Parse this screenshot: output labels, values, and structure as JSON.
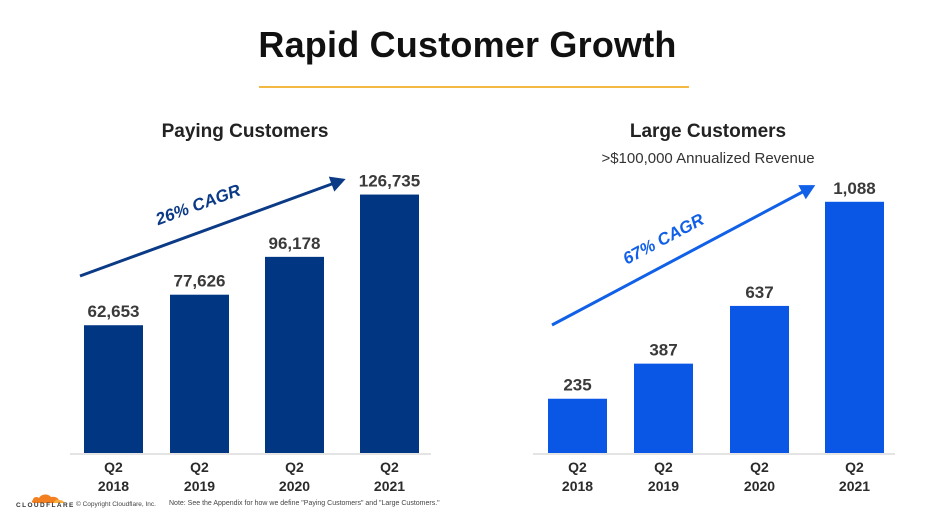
{
  "title": "Rapid Customer Growth",
  "colors": {
    "accent_rule": "#f4b942",
    "paying_bar": "#003682",
    "large_bar": "#0a57e6",
    "paying_arrow": "#0b3a86",
    "large_arrow": "#1160e8"
  },
  "footer": {
    "logo_text": "CLOUDFLARE",
    "copyright": "© Copyright Cloudflare, Inc.",
    "note": "Note: See the Appendix for how we define \"Paying Customers\" and \"Large Customers.\""
  },
  "chart_data": [
    {
      "type": "bar",
      "title": "Paying Customers",
      "subtitle": "",
      "categories": [
        [
          "Q2",
          "2018"
        ],
        [
          "Q2",
          "2019"
        ],
        [
          "Q2",
          "2020"
        ],
        [
          "Q2",
          "2021"
        ]
      ],
      "values": [
        62653,
        77626,
        96178,
        126735
      ],
      "value_labels": [
        "62,653",
        "77,626",
        "96,178",
        "126,735"
      ],
      "annotation": "26% CAGR",
      "ylim": [
        0,
        140000
      ]
    },
    {
      "type": "bar",
      "title": "Large Customers",
      "subtitle": ">$100,000 Annualized Revenue",
      "categories": [
        [
          "Q2",
          "2018"
        ],
        [
          "Q2",
          "2019"
        ],
        [
          "Q2",
          "2020"
        ],
        [
          "Q2",
          "2021"
        ]
      ],
      "values": [
        235,
        387,
        637,
        1088
      ],
      "value_labels": [
        "235",
        "387",
        "637",
        "1,088"
      ],
      "annotation": "67% CAGR",
      "ylim": [
        0,
        1200
      ]
    }
  ]
}
